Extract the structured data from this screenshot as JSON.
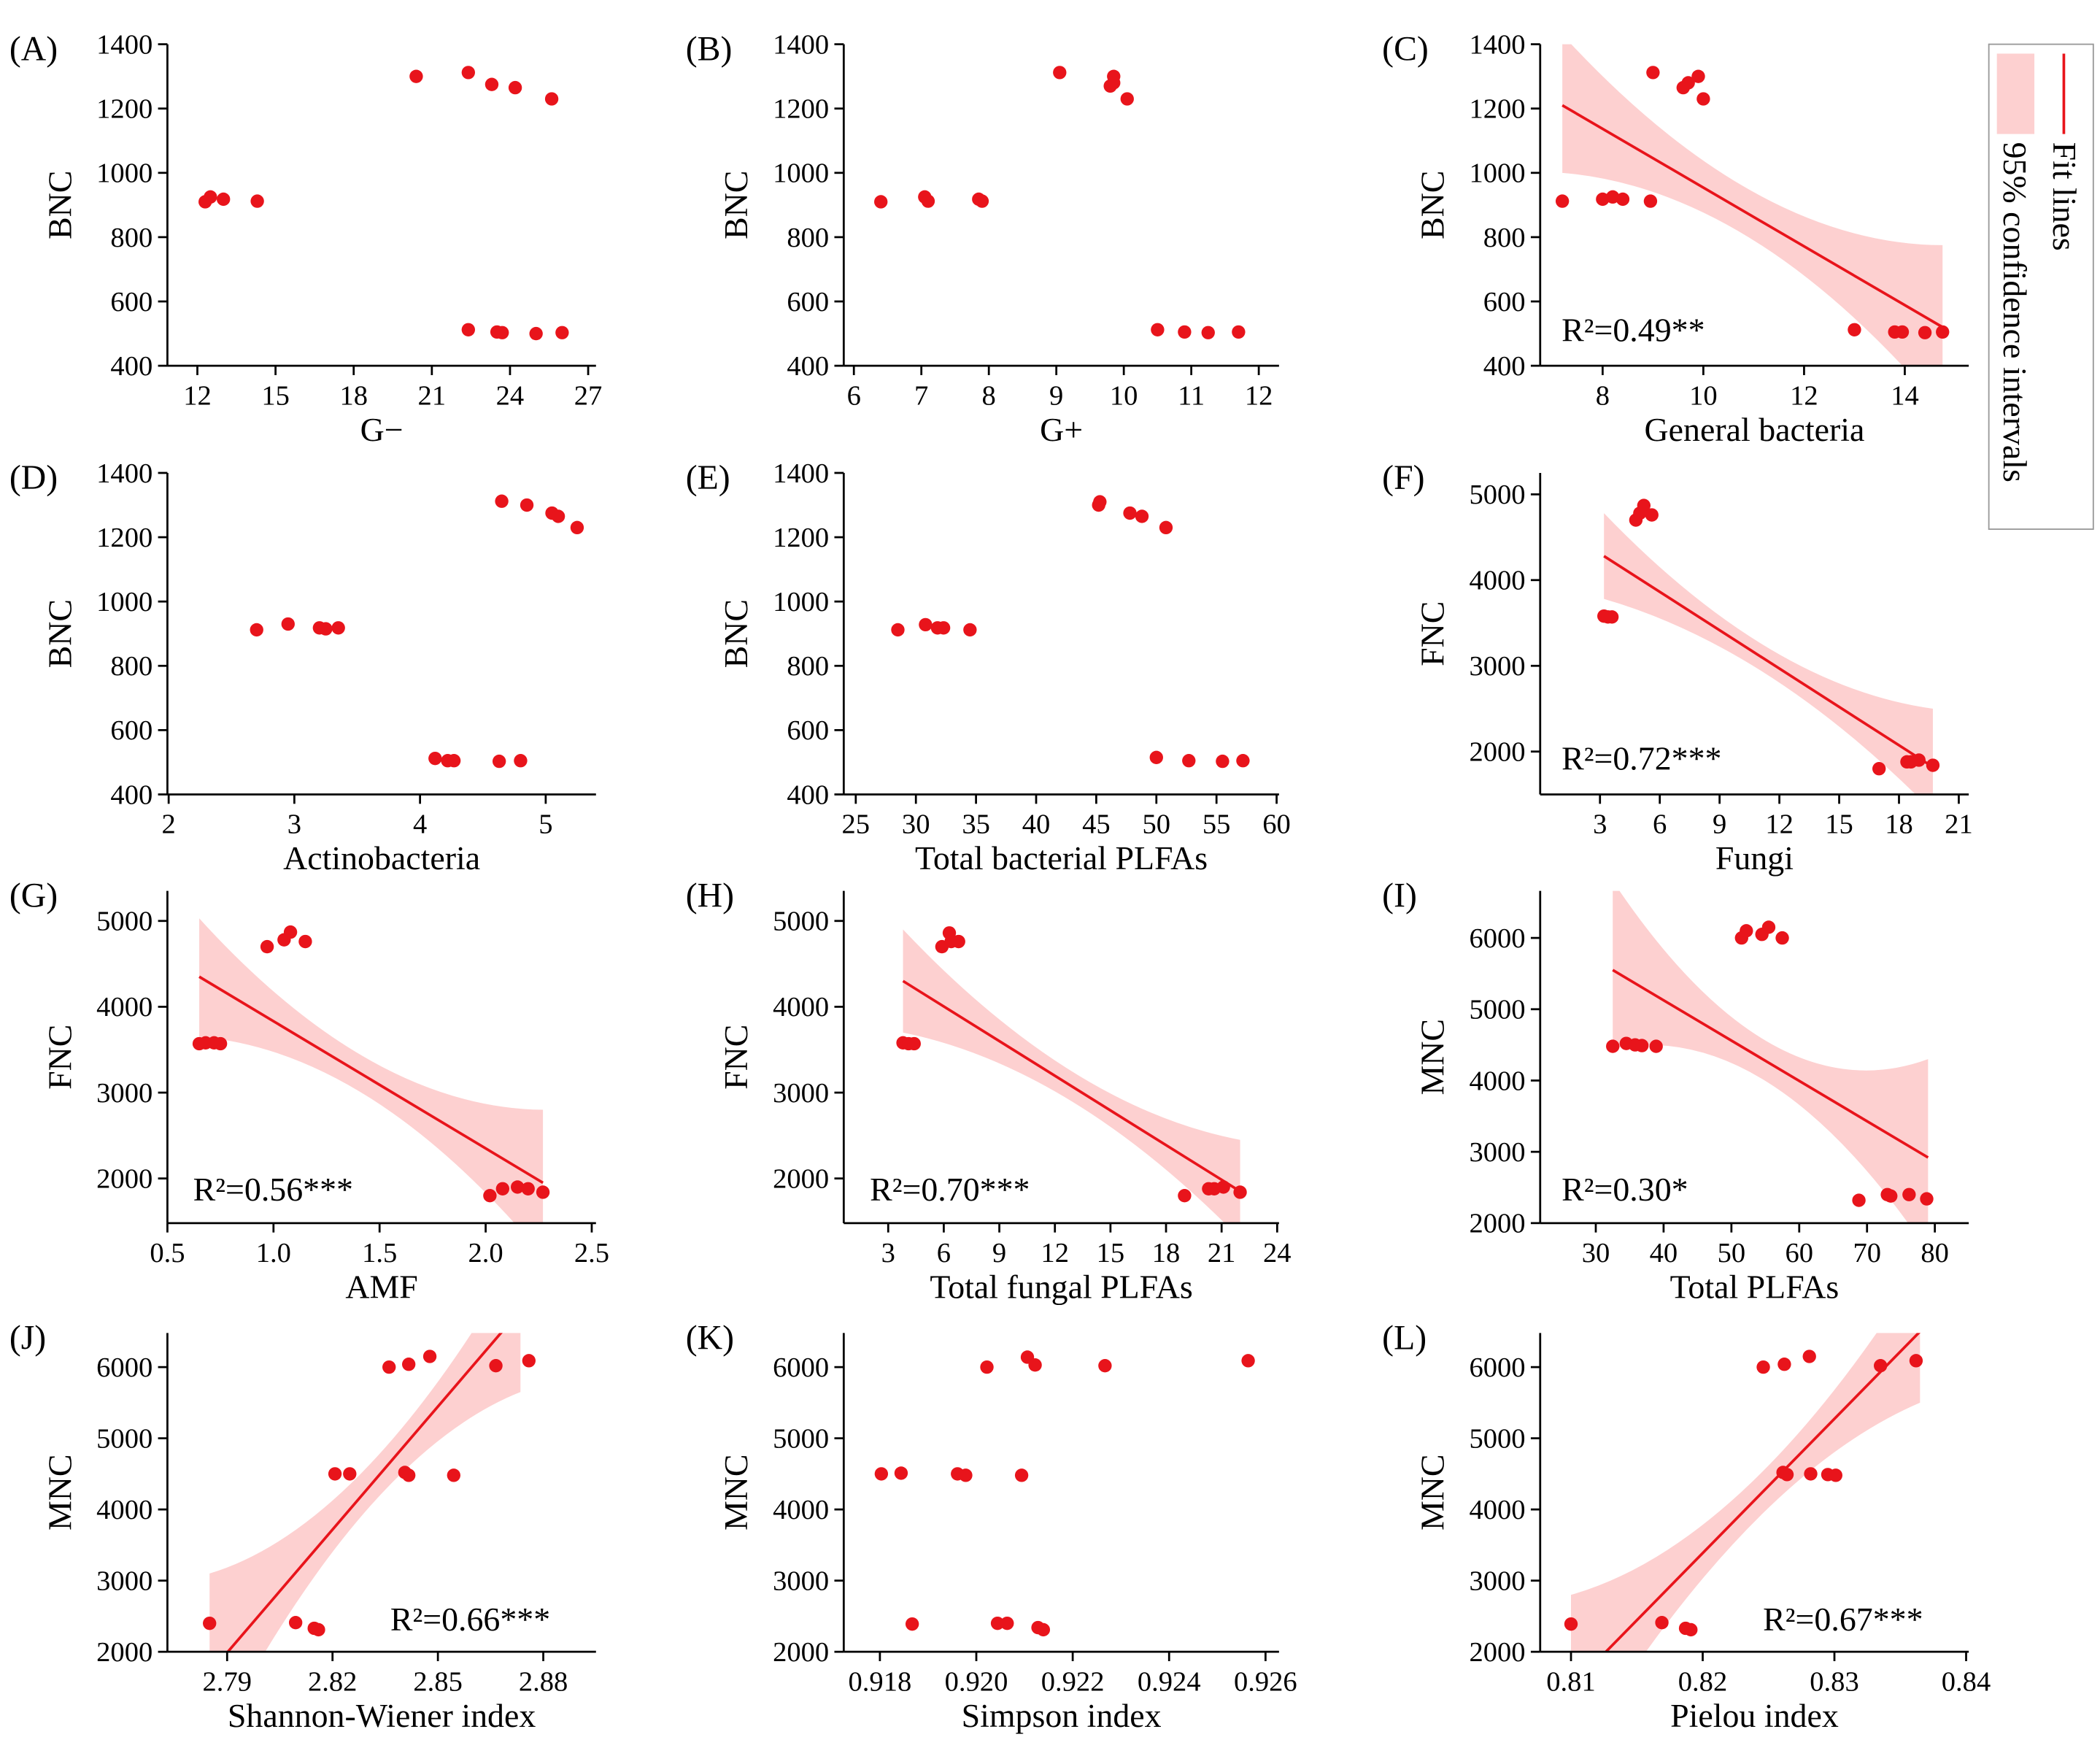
{
  "chart_data": [
    {
      "type": "scatter",
      "panel": "(A)",
      "xlabel": "G−",
      "ylabel": "BNC",
      "color": "#e8141b",
      "x": [
        12.3,
        12.5,
        13.0,
        14.3,
        20.4,
        22.4,
        23.3,
        24.2,
        25.6,
        22.4,
        23.5,
        23.7,
        25.0,
        26.0
      ],
      "y": [
        910,
        925,
        918,
        912,
        1300,
        1312,
        1275,
        1265,
        1230,
        512,
        505,
        503,
        500,
        503
      ],
      "xlim": [
        10.85,
        27.3
      ],
      "xticks": [
        12,
        15,
        18,
        21,
        24,
        27
      ],
      "ylim": [
        400,
        1400
      ],
      "yticks": [
        400,
        600,
        800,
        1000,
        1200,
        1400
      ]
    },
    {
      "type": "scatter",
      "panel": "(B)",
      "xlabel": "G+",
      "ylabel": "BNC",
      "color": "#e8141b",
      "x": [
        6.4,
        7.05,
        7.1,
        7.85,
        7.9,
        9.05,
        9.8,
        9.85,
        9.85,
        10.05,
        10.5,
        10.9,
        11.25,
        11.7
      ],
      "y": [
        910,
        925,
        912,
        918,
        912,
        1312,
        1270,
        1300,
        1280,
        1230,
        512,
        505,
        503,
        505
      ],
      "xlim": [
        5.85,
        12.3
      ],
      "xticks": [
        6,
        7,
        8,
        9,
        10,
        11,
        12
      ],
      "ylim": [
        400,
        1400
      ],
      "yticks": [
        400,
        600,
        800,
        1000,
        1200,
        1400
      ]
    },
    {
      "type": "scatter",
      "panel": "(C)",
      "xlabel": "General bacteria",
      "ylabel": "BNC",
      "color": "#e8141b",
      "annotation": "R²=0.49**",
      "x": [
        7.2,
        8.0,
        8.2,
        8.4,
        8.95,
        9.0,
        9.6,
        9.7,
        9.9,
        10.0,
        13.0,
        13.8,
        13.95,
        14.4,
        14.75
      ],
      "y": [
        912,
        918,
        925,
        918,
        912,
        1312,
        1265,
        1280,
        1300,
        1230,
        512,
        505,
        505,
        503,
        505
      ],
      "fit": {
        "x": [
          7.2,
          14.75
        ],
        "y": [
          1210,
          520
        ]
      },
      "ci": {
        "x": [
          7.2,
          11,
          14.75
        ],
        "upper": [
          1430,
          940,
          775
        ],
        "lower": [
          1000,
          790,
          260
        ]
      },
      "xlim": [
        6.76,
        15.27
      ],
      "xticks": [
        8,
        10,
        12,
        14
      ],
      "ylim": [
        400,
        1400
      ],
      "yticks": [
        400,
        600,
        800,
        1000,
        1200,
        1400
      ]
    },
    {
      "type": "scatter",
      "panel": "(D)",
      "xlabel": "Actinobacteria",
      "ylabel": "BNC",
      "color": "#e8141b",
      "x": [
        2.7,
        2.95,
        3.2,
        3.25,
        3.35,
        4.12,
        4.22,
        4.27,
        4.63,
        4.65,
        4.85,
        4.8,
        5.05,
        5.1,
        5.25
      ],
      "y": [
        912,
        930,
        918,
        915,
        918,
        512,
        505,
        505,
        503,
        1312,
        1300,
        505,
        1275,
        1265,
        1230
      ],
      "xlim": [
        1.99,
        5.4
      ],
      "xticks": [
        2,
        3,
        4,
        5
      ],
      "ylim": [
        400,
        1400
      ],
      "yticks": [
        400,
        600,
        800,
        1000,
        1200,
        1400
      ]
    },
    {
      "type": "scatter",
      "panel": "(E)",
      "xlabel": "Total bacterial PLFAs",
      "ylabel": "BNC",
      "color": "#e8141b",
      "x": [
        28.5,
        30.8,
        31.8,
        32.3,
        34.5,
        45.2,
        45.3,
        47.8,
        48.8,
        50.8,
        50.0,
        52.7,
        55.5,
        57.2
      ],
      "y": [
        912,
        928,
        918,
        918,
        912,
        1300,
        1310,
        1275,
        1265,
        1230,
        515,
        505,
        503,
        505
      ],
      "xlim": [
        24,
        60.2
      ],
      "xticks": [
        25,
        30,
        35,
        40,
        45,
        50,
        55,
        60
      ],
      "ylim": [
        400,
        1400
      ],
      "yticks": [
        400,
        600,
        800,
        1000,
        1200,
        1400
      ]
    },
    {
      "type": "scatter",
      "panel": "(F)",
      "xlabel": "Fungi",
      "ylabel": "FNC",
      "color": "#e8141b",
      "annotation": "R²=0.72***",
      "x": [
        3.2,
        3.4,
        3.6,
        4.8,
        5.0,
        5.2,
        5.6,
        17.0,
        18.4,
        18.6,
        19.0,
        19.7
      ],
      "y": [
        3580,
        3570,
        3570,
        4700,
        4780,
        4870,
        4760,
        1800,
        1880,
        1880,
        1900,
        1840
      ],
      "fit": {
        "x": [
          3.2,
          19.7
        ],
        "y": [
          4280,
          1820
        ]
      },
      "ci": {
        "x": [
          3.2,
          11.5,
          19.7
        ],
        "upper": [
          4780,
          3200,
          2500
        ],
        "lower": [
          3780,
          2880,
          1300
        ]
      },
      "xlim": [
        0,
        21.5
      ],
      "xticks": [
        3,
        6,
        9,
        12,
        15,
        18,
        21
      ],
      "ylim": [
        1500,
        5250
      ],
      "yticks": [
        2000,
        3000,
        4000,
        5000
      ]
    },
    {
      "type": "scatter",
      "panel": "(G)",
      "xlabel": "AMF",
      "ylabel": "FNC",
      "color": "#e8141b",
      "annotation": "R²=0.56***",
      "x": [
        0.65,
        0.68,
        0.72,
        0.75,
        0.97,
        1.05,
        1.08,
        1.15,
        2.02,
        2.08,
        2.15,
        2.2,
        2.27
      ],
      "y": [
        3570,
        3580,
        3580,
        3570,
        4700,
        4780,
        4870,
        4760,
        1800,
        1880,
        1900,
        1880,
        1840
      ],
      "fit": {
        "x": [
          0.65,
          2.27
        ],
        "y": [
          4350,
          1950
        ]
      },
      "ci": {
        "x": [
          0.65,
          1.46,
          2.27
        ],
        "upper": [
          5030,
          3370,
          2800
        ],
        "lower": [
          3650,
          2930,
          1100
        ]
      },
      "xlim": [
        0.5,
        2.52
      ],
      "xticks": [
        0.5,
        {
          "value": 1,
          "label": "1.0"
        },
        1.5,
        {
          "value": 2,
          "label": "2.0"
        },
        2.5
      ],
      "ylim": [
        1480,
        5350
      ],
      "yticks": [
        2000,
        3000,
        4000,
        5000
      ]
    },
    {
      "type": "scatter",
      "panel": "(H)",
      "xlabel": "Total fungal PLFAs",
      "ylabel": "FNC",
      "color": "#e8141b",
      "annotation": "R²=0.70***",
      "x": [
        3.8,
        4.1,
        4.4,
        5.9,
        6.3,
        6.4,
        6.8,
        19.0,
        20.3,
        20.6,
        21.1,
        22.0
      ],
      "y": [
        3580,
        3570,
        3570,
        4700,
        4860,
        4760,
        4760,
        1800,
        1880,
        1880,
        1900,
        1840
      ],
      "fit": {
        "x": [
          3.8,
          22
        ],
        "y": [
          4300,
          1850
        ]
      },
      "ci": {
        "x": [
          3.8,
          12.9,
          22
        ],
        "upper": [
          4900,
          3250,
          2450
        ],
        "lower": [
          3700,
          2900,
          1300
        ]
      },
      "xlim": [
        0.6,
        24.1
      ],
      "xticks": [
        3,
        6,
        9,
        12,
        15,
        18,
        21,
        24
      ],
      "ylim": [
        1480,
        5350
      ],
      "yticks": [
        2000,
        3000,
        4000,
        5000
      ]
    },
    {
      "type": "scatter",
      "panel": "(I)",
      "xlabel": "Total PLFAs",
      "ylabel": "MNC",
      "color": "#e8141b",
      "annotation": "R²=0.30*",
      "x": [
        32.5,
        34.5,
        35.8,
        36.8,
        38.9,
        51.5,
        52.2,
        54.5,
        55.5,
        57.5,
        68.8,
        73.0,
        73.5,
        76.2,
        78.8
      ],
      "y": [
        4480,
        4520,
        4500,
        4490,
        4480,
        6000,
        6100,
        6050,
        6150,
        6000,
        2320,
        2400,
        2380,
        2400,
        2340
      ],
      "fit": {
        "x": [
          32.5,
          79
        ],
        "y": [
          5550,
          2920
        ]
      },
      "ci": {
        "x": [
          32.5,
          55.75,
          79
        ],
        "upper": [
          6800,
          4520,
          4300
        ],
        "lower": [
          4450,
          3950,
          1600
        ]
      },
      "xlim": [
        21.8,
        85
      ],
      "xticks": [
        30,
        40,
        50,
        60,
        70,
        80
      ],
      "ylim": [
        2000,
        6660
      ],
      "yticks": [
        2000,
        3000,
        4000,
        5000,
        6000
      ]
    },
    {
      "type": "scatter",
      "panel": "(J)",
      "xlabel": "Shannon-Wiener index",
      "ylabel": "MNC",
      "color": "#e8141b",
      "annotation": "R²=0.66***",
      "x": [
        2.785,
        2.8095,
        2.8148,
        2.816,
        2.8207,
        2.8249,
        2.8361,
        2.8406,
        2.8417,
        2.8417,
        2.8477,
        2.8545,
        2.8665,
        2.8759
      ],
      "y": [
        2400,
        2410,
        2330,
        2310,
        4500,
        4500,
        6000,
        4520,
        4480,
        6040,
        6150,
        4480,
        6020,
        6090
      ],
      "fit": {
        "x": [
          2.785,
          2.8735
        ],
        "y": [
          1700,
          6800
        ]
      },
      "ci": {
        "x": [
          2.785,
          2.829,
          2.8735
        ],
        "upper": [
          3100,
          4550,
          7600
        ],
        "lower": [
          600,
          3950,
          5650
        ]
      },
      "xlim": [
        2.773,
        2.895
      ],
      "xticks": [
        2.79,
        2.82,
        2.85,
        2.88
      ],
      "ylim": [
        2000,
        6480
      ],
      "yticks": [
        2000,
        3000,
        4000,
        5000,
        6000
      ]
    },
    {
      "type": "scatter",
      "panel": "(K)",
      "xlabel": "Simpson index",
      "ylabel": "MNC",
      "color": "#e8141b",
      "x": [
        0.91803,
        0.91844,
        0.91867,
        0.91961,
        0.91978,
        0.92022,
        0.92044,
        0.92064,
        0.92094,
        0.92106,
        0.92122,
        0.92128,
        0.92139,
        0.92267,
        0.92564
      ],
      "y": [
        4500,
        4510,
        2390,
        4500,
        4480,
        6000,
        2400,
        2400,
        4480,
        6140,
        6030,
        2340,
        2310,
        6020,
        6090
      ],
      "xlim": [
        0.91725,
        0.92628
      ],
      "xticks": [
        0.918,
        {
          "value": 0.92,
          "label": "0.920"
        },
        0.922,
        0.924,
        0.926
      ],
      "ylim": [
        2000,
        6480
      ],
      "yticks": [
        2000,
        3000,
        4000,
        5000,
        6000
      ]
    },
    {
      "type": "scatter",
      "panel": "(L)",
      "xlabel": "Pielou index",
      "ylabel": "MNC",
      "color": "#e8141b",
      "annotation": "R²=0.67***",
      "x": [
        0.81,
        0.8169,
        0.8187,
        0.8191,
        0.8246,
        0.8261,
        0.8264,
        0.8262,
        0.8281,
        0.8282,
        0.8295,
        0.8301,
        0.8335,
        0.8362
      ],
      "y": [
        2390,
        2410,
        2330,
        2310,
        6000,
        4520,
        4490,
        6040,
        6150,
        4500,
        4490,
        4480,
        6020,
        6090
      ],
      "fit": {
        "x": [
          0.81,
          0.8365
        ],
        "y": [
          1500,
          6500
        ]
      },
      "ci": {
        "x": [
          0.81,
          0.82325,
          0.8365
        ],
        "upper": [
          2800,
          4300,
          7400
        ],
        "lower": [
          400,
          3700,
          5500
        ]
      },
      "xlim": [
        0.80766,
        0.8402
      ],
      "xticks": [
        0.81,
        0.82,
        0.83,
        0.84
      ],
      "ylim": [
        2000,
        6480
      ],
      "yticks": [
        2000,
        3000,
        4000,
        5000,
        6000
      ]
    }
  ],
  "legend": [
    {
      "name": "Fit lines",
      "color": "#e8141b"
    },
    {
      "name": "95% confidence intervals",
      "color": "#fdd0d0"
    }
  ]
}
